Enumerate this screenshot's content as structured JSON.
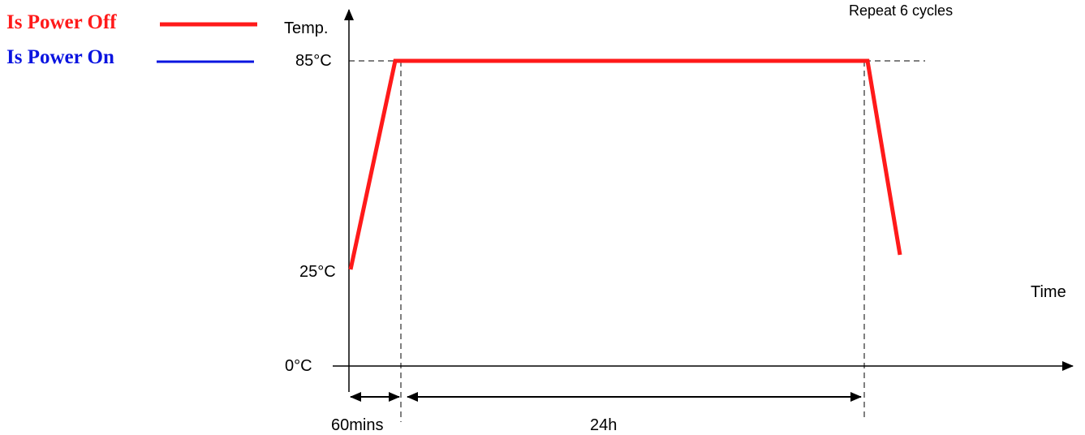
{
  "legend": {
    "power_off": {
      "label": "Is Power Off",
      "color": "#ff1a1a"
    },
    "power_on": {
      "label": "Is Power On",
      "color": "#0a14e0"
    }
  },
  "annotation": "Repeat 6 cycles",
  "axes": {
    "y_label": "Temp.",
    "x_label": "Time",
    "y_ticks": [
      "85°C",
      "25°C",
      "0°C"
    ]
  },
  "intervals": {
    "ramp": "60mins",
    "dwell": "24h"
  },
  "profile": {
    "start_temp_c": 25,
    "dwell_temp_c": 85,
    "end_temp_c": 25,
    "line_color": "#ff1a1a"
  }
}
